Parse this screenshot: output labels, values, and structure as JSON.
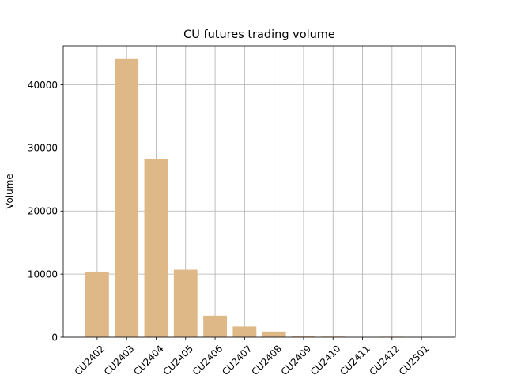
{
  "chart_data": {
    "type": "bar",
    "title": "CU futures trading volume",
    "xlabel": "",
    "ylabel": "Volume",
    "categories": [
      "CU2402",
      "CU2403",
      "CU2404",
      "CU2405",
      "CU2406",
      "CU2407",
      "CU2408",
      "CU2409",
      "CU2410",
      "CU2411",
      "CU2412",
      "CU2501"
    ],
    "values": [
      10400,
      44100,
      28200,
      10700,
      3400,
      1700,
      900,
      120,
      100,
      40,
      80,
      20
    ],
    "ylim": [
      0,
      46200
    ],
    "yticks": [
      0,
      10000,
      20000,
      30000,
      40000
    ],
    "ytick_labels": [
      "0",
      "10000",
      "20000",
      "30000",
      "40000"
    ],
    "grid": true,
    "colors": {
      "bar": "#deb887",
      "grid": "#b0b0b0",
      "axis": "#000000"
    }
  }
}
